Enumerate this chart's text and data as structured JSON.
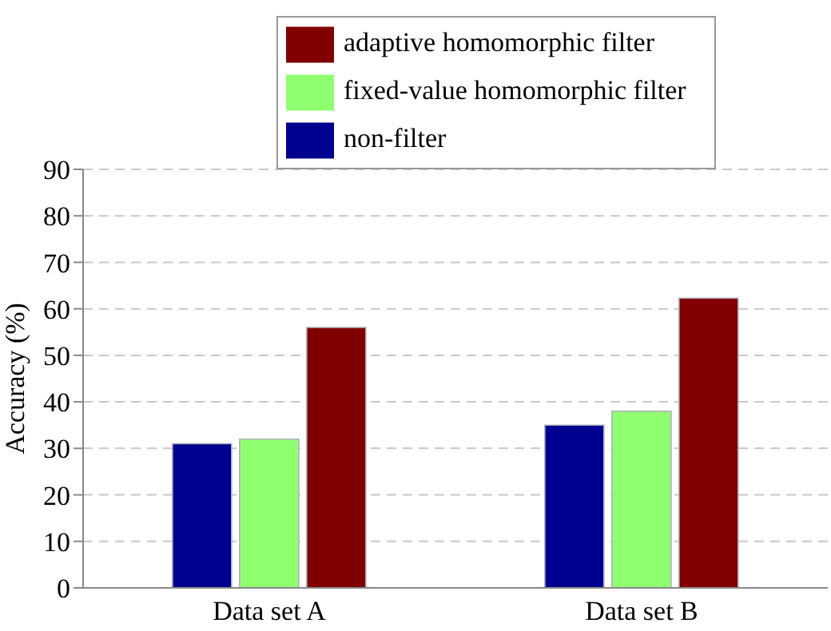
{
  "chart_data": {
    "type": "bar",
    "categories": [
      "Data set A",
      "Data set B"
    ],
    "ylabel": "Accuracy (%)",
    "series": [
      {
        "name": "non-filter",
        "color": "#000090",
        "values": [
          31,
          35
        ]
      },
      {
        "name": "fixed-value homomorphic filter",
        "color": "#90ff70",
        "values": [
          32,
          38
        ]
      },
      {
        "name": "adaptive homomorphic filter",
        "color": "#800000",
        "values": [
          56,
          62.3
        ]
      }
    ],
    "ylim": [
      0,
      90
    ],
    "yticks": [
      0,
      10,
      20,
      30,
      40,
      50,
      60,
      70,
      80,
      90
    ],
    "grid": "y",
    "legend": "top"
  }
}
